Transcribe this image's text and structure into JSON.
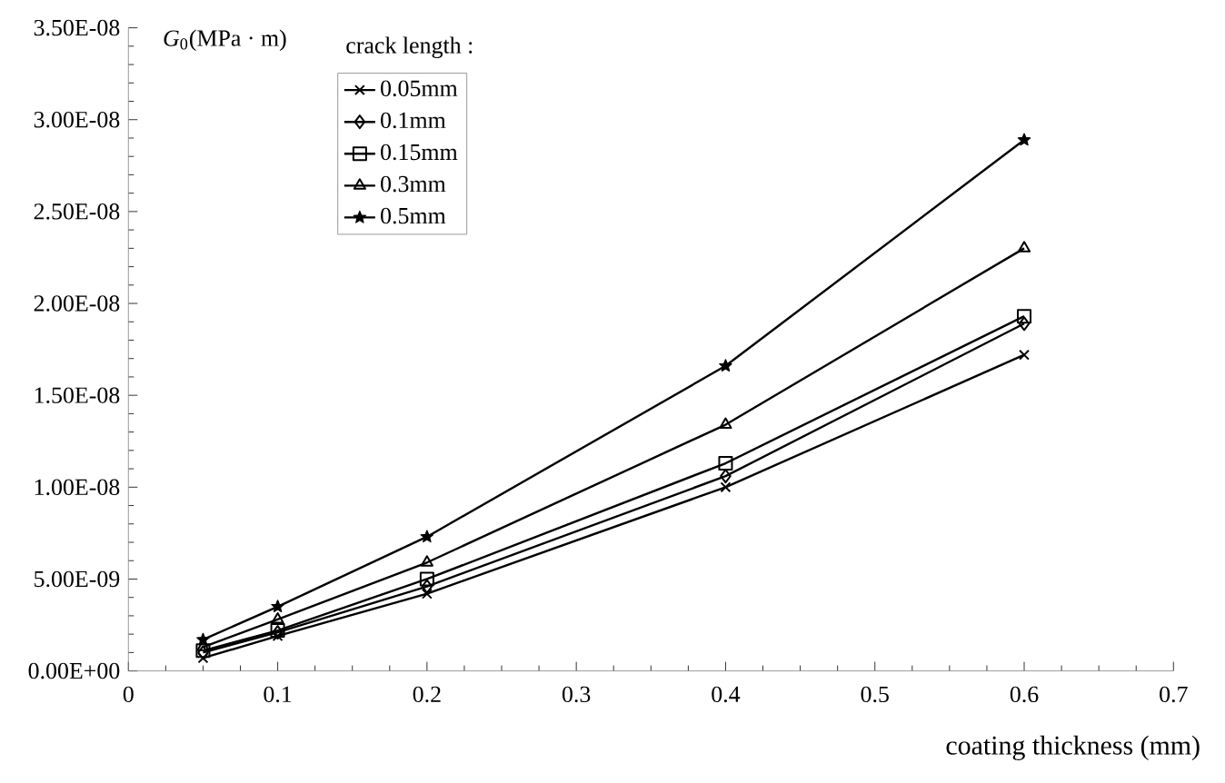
{
  "chart_data": {
    "type": "line",
    "xlabel": "coating thickness (mm)",
    "ylabel": "*G*$_{0}$(MPa · m)",
    "legend_title": "crack length :",
    "legend": "top left",
    "grid": false,
    "line_style": "solid",
    "xlim": [
      0,
      0.7
    ],
    "xticks": [
      0,
      0.1,
      0.2,
      0.3,
      0.4,
      0.5,
      0.6,
      0.7
    ],
    "ylim": [
      0,
      3.5e-08
    ],
    "yticks": [
      {
        "value": 0,
        "label": "0.00E+00"
      },
      {
        "value": 5e-09,
        "label": "5.00E-09"
      },
      {
        "value": 1e-08,
        "label": "1.00E-08"
      },
      {
        "value": 1.5e-08,
        "label": "1.50E-08"
      },
      {
        "value": 2e-08,
        "label": "2.00E-08"
      },
      {
        "value": 2.5e-08,
        "label": "2.50E-08"
      },
      {
        "value": 3e-08,
        "label": "3.00E-08"
      },
      {
        "value": 3.5e-08,
        "label": "3.50E-08"
      }
    ],
    "x": [
      0.05,
      0.1,
      0.2,
      0.4,
      0.6
    ],
    "series": [
      {
        "name": "0.05mm",
        "color": "#000000",
        "marker": "cross",
        "values": [
          7e-10,
          1.9e-09,
          4.2e-09,
          1e-08,
          1.72e-08
        ]
      },
      {
        "name": "0.1mm",
        "color": "#000000",
        "marker": "diamond",
        "values": [
          1e-09,
          2.1e-09,
          4.6e-09,
          1.06e-08,
          1.89e-08
        ]
      },
      {
        "name": "0.15mm",
        "color": "#000000",
        "marker": "square",
        "values": [
          1.1e-09,
          2.2e-09,
          5e-09,
          1.13e-08,
          1.93e-08
        ]
      },
      {
        "name": "0.3mm",
        "color": "#000000",
        "marker": "triangle",
        "values": [
          1.3e-09,
          2.8e-09,
          5.9e-09,
          1.34e-08,
          2.3e-08
        ]
      },
      {
        "name": "0.5mm",
        "color": "#000000",
        "marker": "star",
        "values": [
          1.7e-09,
          3.5e-09,
          7.3e-09,
          1.66e-08,
          2.89e-08
        ]
      }
    ]
  }
}
